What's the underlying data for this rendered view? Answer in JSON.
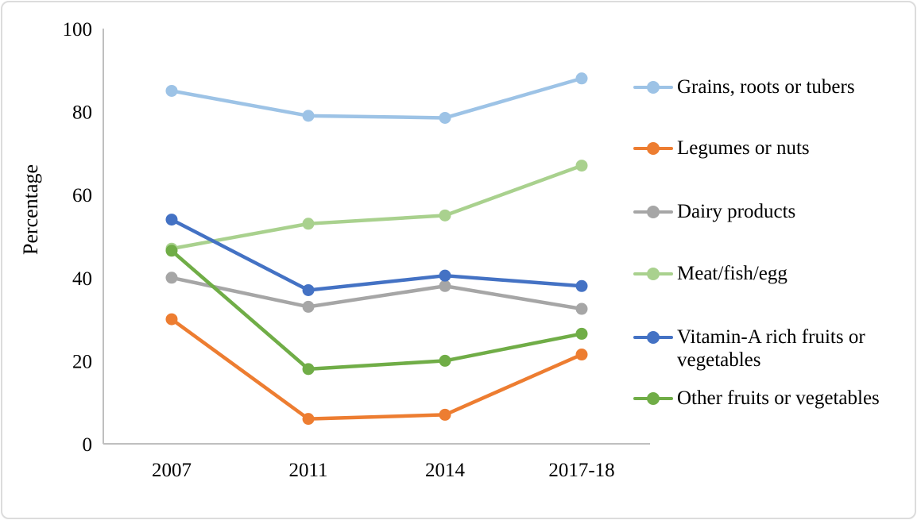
{
  "chart_data": {
    "type": "line",
    "title": "",
    "xlabel": "",
    "ylabel": "Percentage",
    "categories": [
      "2007",
      "2011",
      "2014",
      "2017-18"
    ],
    "ylim": [
      0,
      100
    ],
    "yticks": [
      0,
      20,
      40,
      60,
      80,
      100
    ],
    "grid": false,
    "legend_position": "right",
    "axis_color": "#BFBFBF",
    "text_color": "#000000",
    "series": [
      {
        "name": "Grains, roots or tubers",
        "color": "#9DC3E6",
        "values": [
          85,
          79,
          78.5,
          88
        ]
      },
      {
        "name": "Legumes or nuts",
        "color": "#ED7D31",
        "values": [
          30,
          6,
          7,
          21.5
        ]
      },
      {
        "name": "Dairy products",
        "color": "#A6A6A6",
        "values": [
          40,
          33,
          38,
          32.5
        ]
      },
      {
        "name": "Meat/fish/egg",
        "color": "#A9D18E",
        "values": [
          47,
          53,
          55,
          67
        ]
      },
      {
        "name": "Vitamin-A rich fruits or vegetables",
        "color": "#4472C4",
        "values": [
          54,
          37,
          40.5,
          38
        ]
      },
      {
        "name": "Other fruits or vegetables",
        "color": "#70AD47",
        "values": [
          46.5,
          18,
          20,
          26.5
        ]
      }
    ]
  }
}
